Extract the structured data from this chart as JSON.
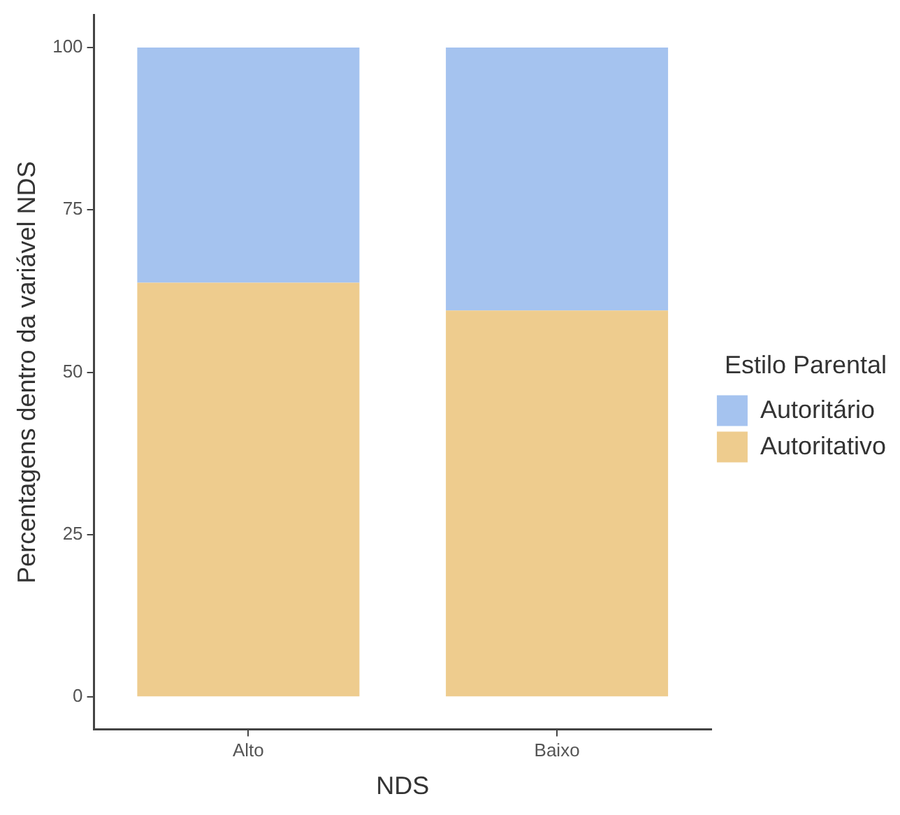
{
  "chart_data": {
    "type": "bar",
    "stacked": true,
    "xlabel": "NDS",
    "ylabel": "Percentagens dentro da variável NDS",
    "legend_title": "Estilo Parental",
    "legend": "right",
    "grid": false,
    "categories": [
      "Alto",
      "Baixo"
    ],
    "series": [
      {
        "name": "Autoritativo",
        "color": "#eecc8e",
        "values": [
          63.8,
          59.5
        ]
      },
      {
        "name": "Autoritário",
        "color": "#a5c3ef",
        "values": [
          36.2,
          40.5
        ]
      }
    ],
    "ylim": [
      -5,
      105
    ],
    "yticks": [
      0,
      25,
      50,
      75,
      100
    ]
  }
}
